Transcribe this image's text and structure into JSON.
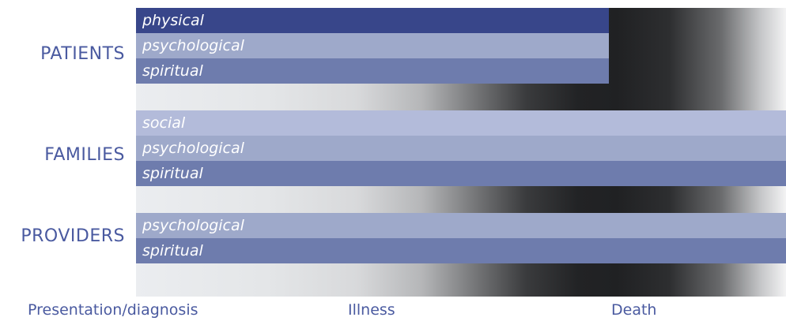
{
  "groups": [
    {
      "name": "PATIENTS",
      "bars": [
        {
          "label": "physical",
          "color": "#38468a"
        },
        {
          "label": "psychological",
          "color": "#9ea9ca"
        },
        {
          "label": "spiritual",
          "color": "#6e7cad"
        }
      ]
    },
    {
      "name": "FAMILIES",
      "bars": [
        {
          "label": "social",
          "color": "#b3bbda"
        },
        {
          "label": "psychological",
          "color": "#9ea9ca"
        },
        {
          "label": "spiritual",
          "color": "#6e7cad"
        }
      ]
    },
    {
      "name": "PROVIDERS",
      "bars": [
        {
          "label": "psychological",
          "color": "#9ea9ca"
        },
        {
          "label": "spiritual",
          "color": "#6e7cad"
        }
      ]
    }
  ],
  "timeline": {
    "start": "Presentation/diagnosis",
    "middle": "Illness",
    "end": "Death"
  },
  "colors": {
    "label_text": "#4a5aa0",
    "bar_text": "#ffffff"
  }
}
